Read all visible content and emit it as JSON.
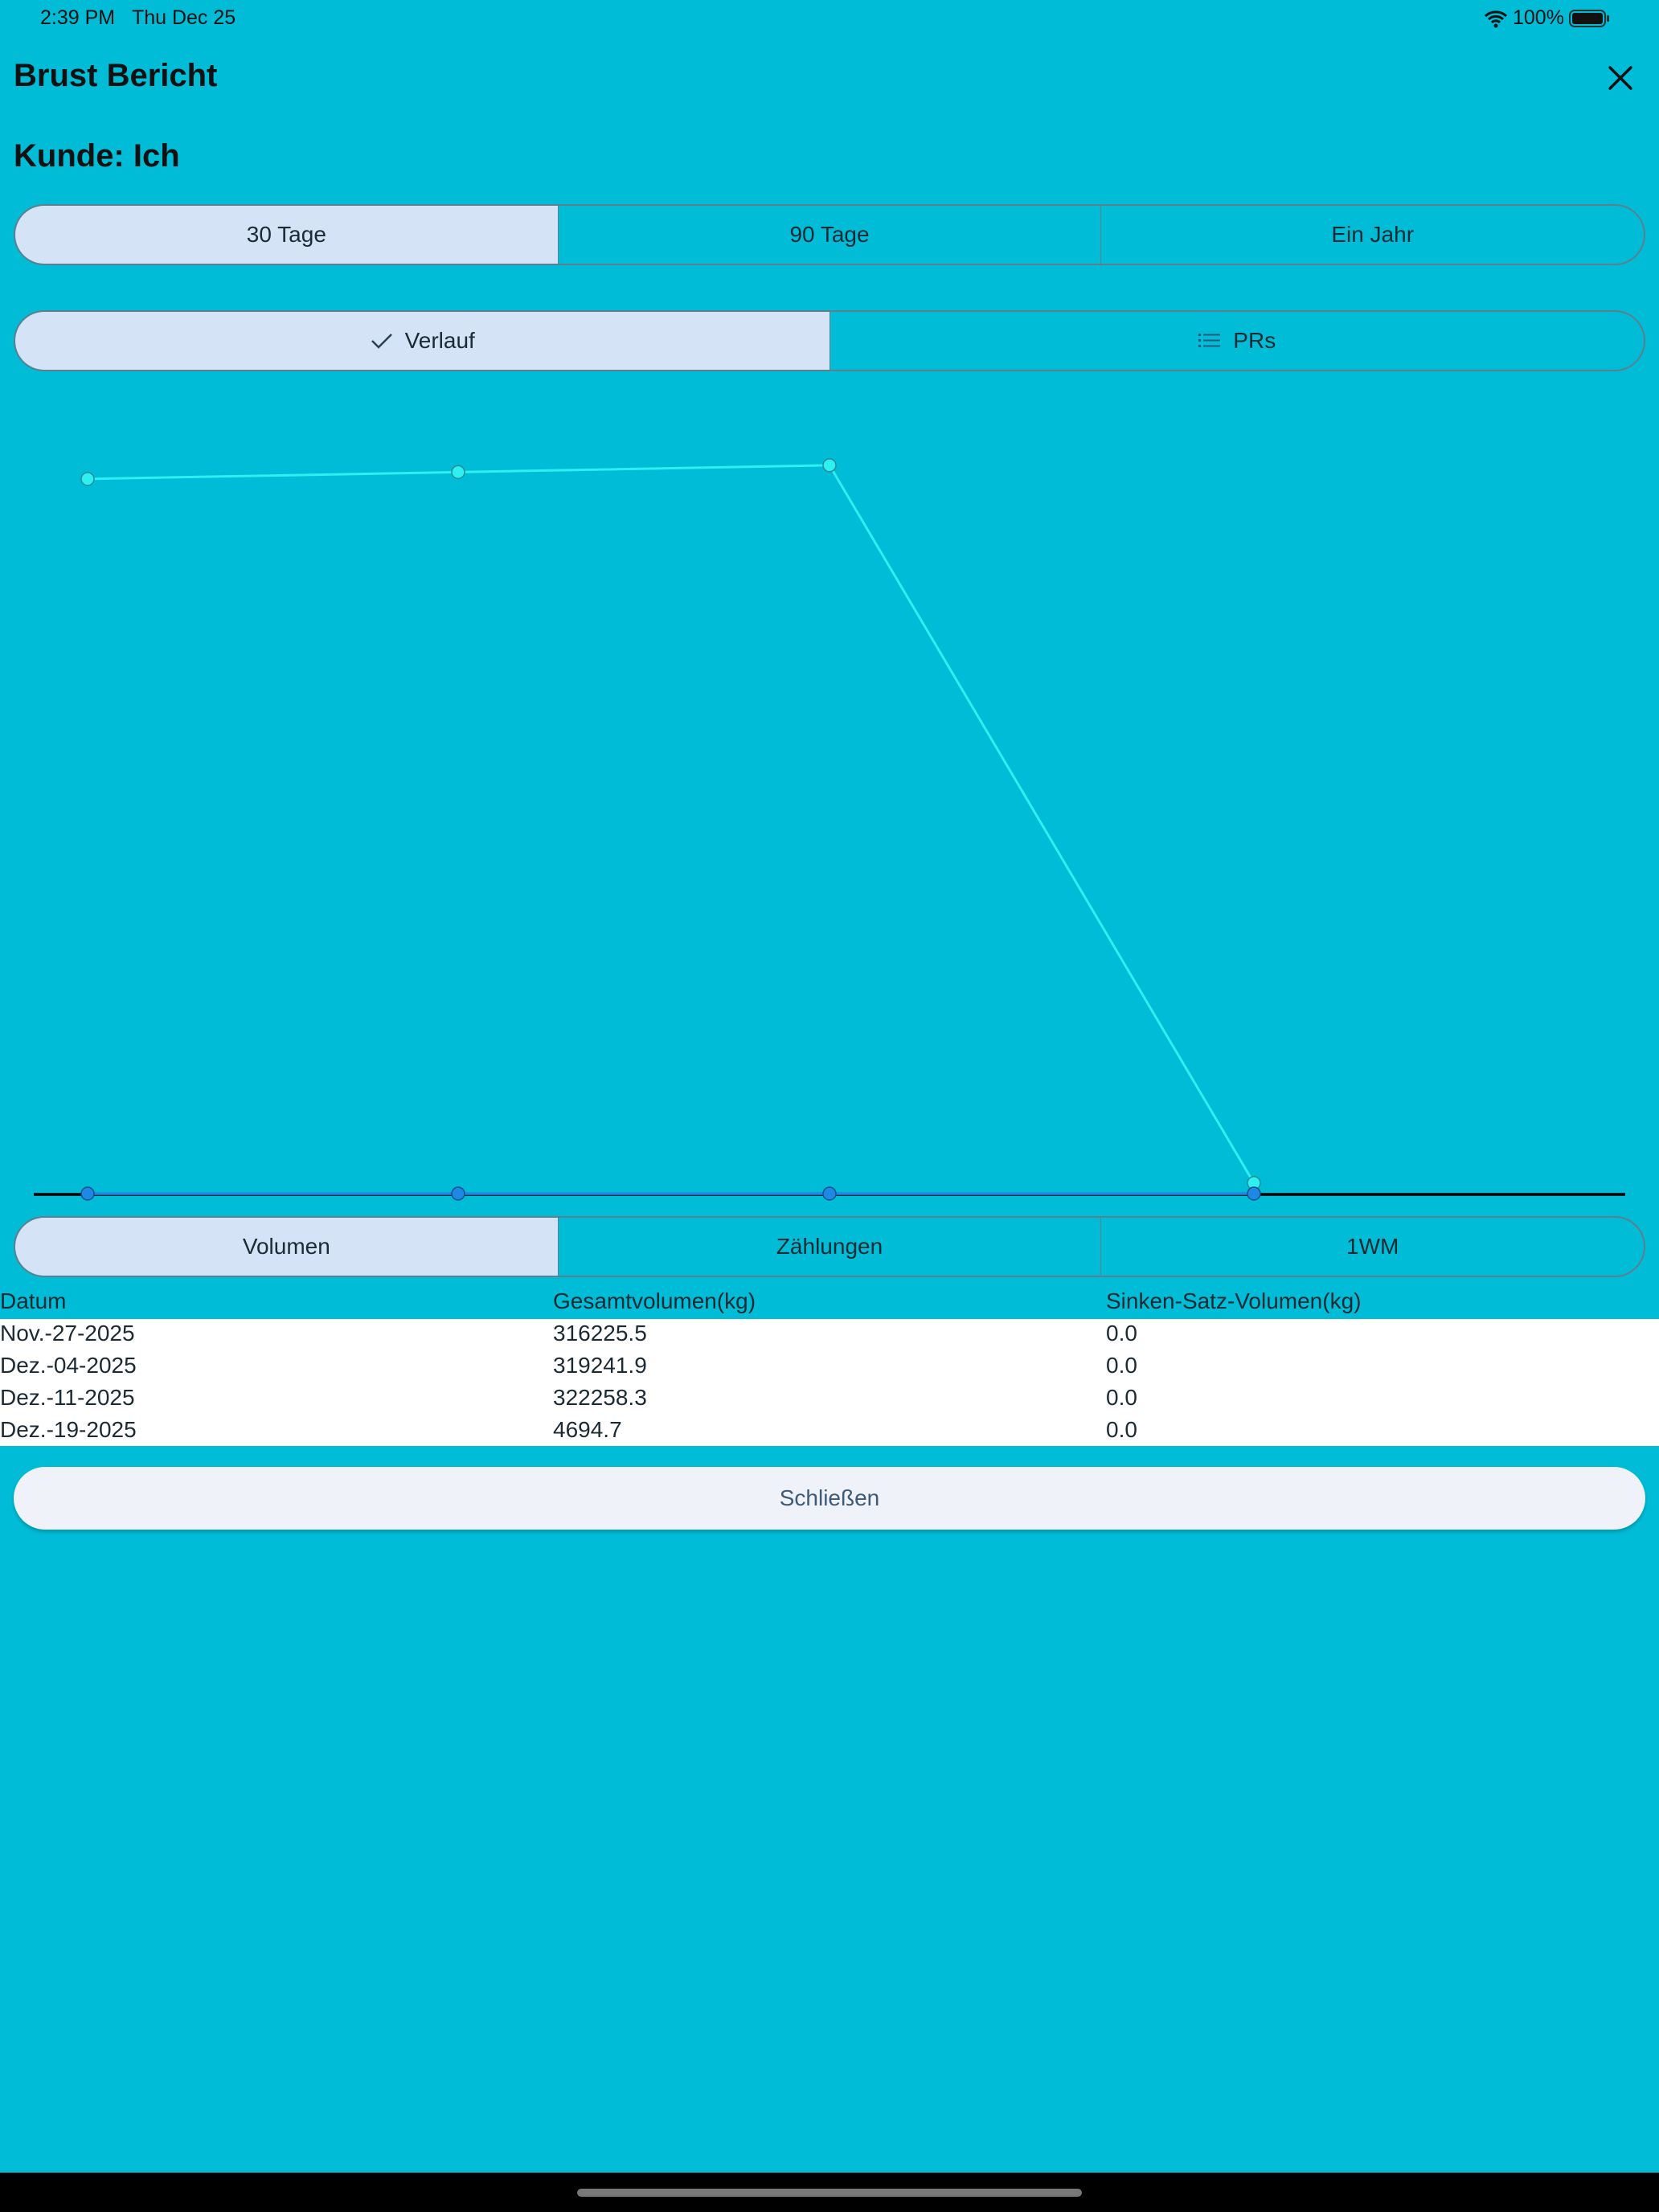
{
  "status_bar": {
    "time": "2:39 PM",
    "date": "Thu Dec 25",
    "battery": "100%",
    "wifi_icon": "wifi-icon",
    "battery_icon": "battery-icon"
  },
  "header": {
    "title": "Brust Bericht",
    "close_icon": "close-icon"
  },
  "client_label": "Kunde: Ich",
  "range_tabs": [
    {
      "label": "30 Tage",
      "selected": true
    },
    {
      "label": "90 Tage",
      "selected": false
    },
    {
      "label": "Ein Jahr",
      "selected": false
    }
  ],
  "view_tabs": [
    {
      "label": "Verlauf",
      "icon": "checkmark-icon",
      "selected": true
    },
    {
      "label": "PRs",
      "icon": "list-icon",
      "selected": false
    }
  ],
  "metric_tabs": [
    {
      "label": "Volumen",
      "selected": true
    },
    {
      "label": "Zählungen",
      "selected": false
    },
    {
      "label": "1WM",
      "selected": false
    }
  ],
  "table": {
    "headers": [
      "Datum",
      "Gesamtvolumen(kg)",
      "Sinken-Satz-Volumen(kg)"
    ],
    "rows": [
      [
        "Nov.-27-2025",
        "316225.5",
        "0.0"
      ],
      [
        "Dez.-04-2025",
        "319241.9",
        "0.0"
      ],
      [
        "Dez.-11-2025",
        "322258.3",
        "0.0"
      ],
      [
        "Dez.-19-2025",
        "4694.7",
        "0.0"
      ]
    ]
  },
  "close_button": "Schließen",
  "colors": {
    "background": "#00bcd6",
    "selected_segment": "#d4e3f5",
    "series_total": "#2ef0f0",
    "series_drop": "#1e88e5"
  },
  "chart_data": {
    "type": "line",
    "x": [
      "Nov.-27-2025",
      "Dez.-04-2025",
      "Dez.-11-2025",
      "Dez.-19-2025"
    ],
    "series": [
      {
        "values": [
          316225.5,
          319241.9,
          322258.3,
          4694.7
        ],
        "color": "#2ef0f0"
      },
      {
        "values": [
          0.0,
          0.0,
          0.0,
          0.0
        ],
        "color": "#1e88e5"
      }
    ],
    "ylim": [
      0,
      340000
    ],
    "grid": false,
    "axis_labels_shown": false
  }
}
